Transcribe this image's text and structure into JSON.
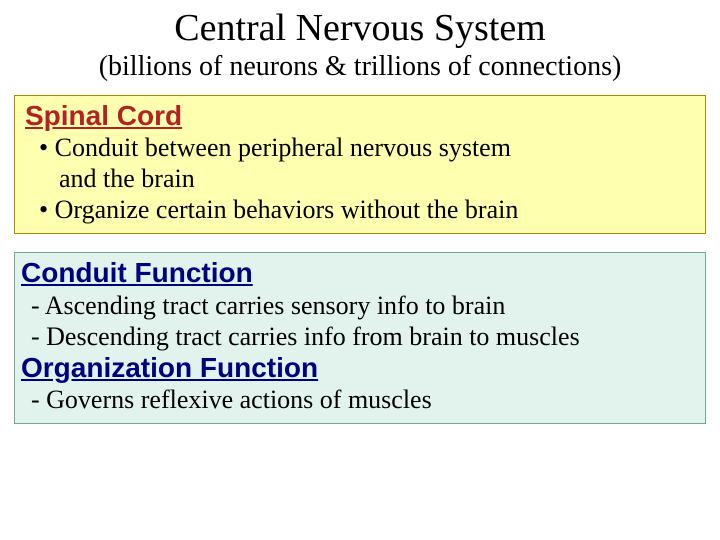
{
  "title": "Central Nervous System",
  "subtitle": "(billions of neurons & trillions of connections)",
  "box1": {
    "background_color": "#ffffb0",
    "border_color": "#c08000",
    "heading": "Spinal Cord",
    "heading_color": "#b22222",
    "heading_font": "Comic Sans MS",
    "heading_fontsize": 28,
    "bullets": [
      "• Conduit between peripheral nervous system",
      "and the brain",
      "• Organize certain behaviors without the brain"
    ]
  },
  "box2": {
    "background_color": "#e2f2ec",
    "border_color": "#6aa8a0",
    "heading1": "Conduit Function",
    "heading1_color": "#000080",
    "lines1": [
      "- Ascending tract carries sensory info to brain",
      "- Descending tract carries info from brain to muscles"
    ],
    "heading2": "Organization Function",
    "heading2_color": "#000080",
    "lines2": [
      "- Governs reflexive actions of muscles"
    ]
  },
  "body_fontsize": 26,
  "title_fontsize": 38,
  "subtitle_fontsize": 28,
  "slide_bg": "#ffffff"
}
